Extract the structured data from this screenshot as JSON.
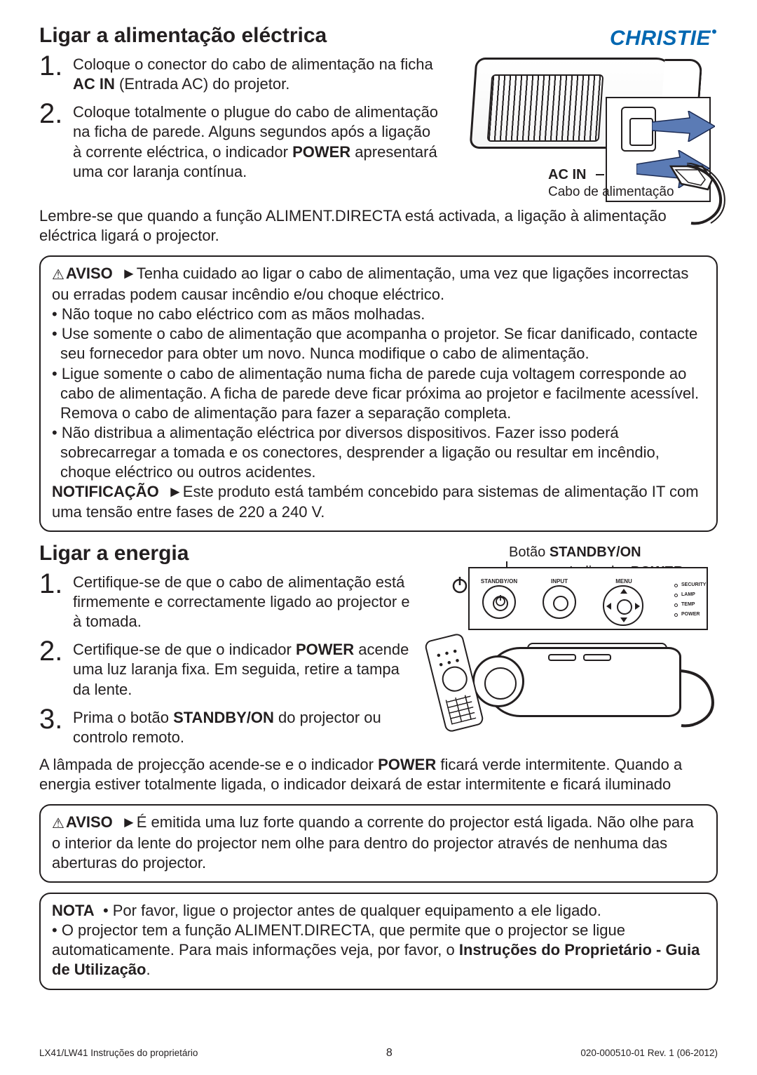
{
  "brand": "CHRISTIE",
  "section1": {
    "title": "Ligar a alimentação eléctrica",
    "step1": "Coloque o conector do cabo de alimentação na ficha <b>AC IN</b> (Entrada AC) do projetor.",
    "step2": "Coloque totalmente o plugue do cabo de alimentação na ficha de parede. Alguns segundos após a ligação à corrente eléctrica, o indicador <b>POWER</b> apresentará uma cor laranja contínua.",
    "para": "Lembre-se que quando a função ALIMENT.DIRECTA está activada, a ligação à alimentação eléctrica ligará o projector.",
    "illus": {
      "acin": "AC IN",
      "cabo": "Cabo de alimentação"
    }
  },
  "box1": {
    "warn_label": "AVISO",
    "warn_text": "►Tenha cuidado ao ligar o cabo de alimentação, uma vez que ligações incorrectas ou erradas podem causar incêndio e/ou choque eléctrico.",
    "b1": "• Não toque no cabo eléctrico com as mãos molhadas.",
    "b2": "• Use somente o cabo de alimentação que acompanha o projetor. Se ficar danificado, contacte seu fornecedor para obter um novo. Nunca modifique o cabo de alimentação.",
    "b3": "• Ligue somente o cabo de alimentação numa ficha de parede cuja voltagem corresponde ao cabo de alimentação. A ficha de parede deve ficar próxima ao projetor e facilmente acessível.  Remova o cabo de alimentação para fazer a separação completa.",
    "b4": "• Não distribua a alimentação eléctrica por diversos dispositivos. Fazer isso poderá sobrecarregar a tomada e os conectores, desprender a ligação ou resultar em incêndio, choque eléctrico ou outros acidentes.",
    "notif_label": "NOTIFICAÇÃO",
    "notif_text": "►Este produto está também concebido para sistemas de alimentação IT com uma tensão entre fases de 220 a 240 V."
  },
  "section2": {
    "title": "Ligar a energia",
    "step1": "Certifique-se de que o cabo de alimentação está firmemente e correctamente ligado ao projector e à tomada.",
    "step2": "Certifique-se de que o indicador <b>POWER</b> acende uma luz laranja fixa. Em seguida, retire a tampa da lente.",
    "step3": "Prima o botão <b>STANDBY/ON</b> do projector ou controlo remoto.",
    "para": "A lâmpada de projecção acende-se e o indicador <b>POWER</b> ficará verde intermitente. Quando a energia estiver totalmente ligada, o indicador deixará de estar intermitente e ficará iluminado",
    "illus": {
      "btn": "Botão <b>STANDBY/ON</b>",
      "ind": "Indicador <b>POWER</b>",
      "panel": {
        "standby": "STANDBY/ON",
        "input": "INPUT",
        "menu": "MENU",
        "sec": "SECURITY",
        "lamp": "LAMP",
        "temp": "TEMP",
        "power": "POWER"
      }
    }
  },
  "box2": {
    "warn_label": "AVISO",
    "text": "►É emitida uma luz forte quando a corrente do projector está ligada. Não olhe para o interior da lente do projector nem olhe para dentro do projector através de nenhuma das aberturas do projector."
  },
  "box3": {
    "nota_label": "NOTA",
    "l1": "• Por favor, ligue o projector antes de qualquer equipamento a ele ligado.",
    "l2": "• O projector tem a função ALIMENT.DIRECTA, que permite que o projector se ligue automaticamente. Para mais informações veja, por favor, o <b>Instruções do Proprietário - Guia de Utilização</b>."
  },
  "footer": {
    "left": "LX41/LW41 Instruções do proprietário",
    "page": "8",
    "right": "020-000510-01 Rev. 1 (06-2012)"
  },
  "colors": {
    "brand": "#0067b1",
    "text": "#231f20",
    "arrow": "#5b7bb5"
  }
}
